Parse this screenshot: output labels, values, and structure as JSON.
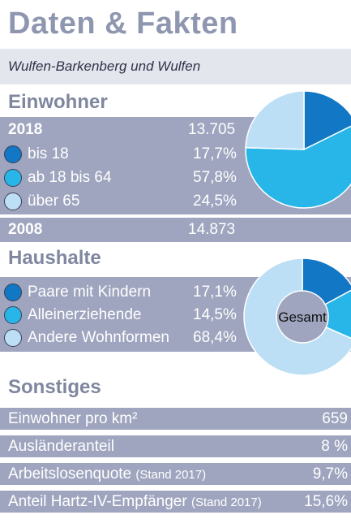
{
  "title": "Daten & Fakten",
  "subtitle": "Wulfen-Barkenberg und Wulfen",
  "colors": {
    "title": "#8f96b0",
    "band": "#9fa5bf",
    "dark_blue": "#1277c4",
    "cyan": "#28b6e8",
    "light_blue": "#bcdff5"
  },
  "einwohner": {
    "heading": "Einwohner",
    "year1": "2018",
    "year1_total": "13.705",
    "items": [
      {
        "label": "bis 18",
        "value": "17,7%",
        "color": "#1277c4"
      },
      {
        "label": "ab 18 bis 64",
        "value": "57,8%",
        "color": "#28b6e8"
      },
      {
        "label": "über 65",
        "value": "24,5%",
        "color": "#bcdff5"
      }
    ],
    "year2": "2008",
    "year2_total": "14.873"
  },
  "haushalte": {
    "heading": "Haushalte",
    "center_label": "Gesamt",
    "items": [
      {
        "label": "Paare mit Kindern",
        "value": "17,1%",
        "color": "#1277c4"
      },
      {
        "label": "Alleinerziehende",
        "value": "14,5%",
        "color": "#28b6e8"
      },
      {
        "label": "Andere Wohnformen",
        "value": "68,4%",
        "color": "#bcdff5"
      }
    ]
  },
  "sonstiges": {
    "heading": "Sonstiges",
    "rows": [
      {
        "label": "Einwohner pro km²",
        "note": "",
        "value": "659"
      },
      {
        "label": "Ausländeranteil",
        "note": "",
        "value": "8 %"
      },
      {
        "label": "Arbeitslosenquote",
        "note": "(Stand 2017)",
        "value": "9,7%"
      },
      {
        "label": "Anteil Hartz-IV-Empfänger",
        "note": "(Stand 2017)",
        "value": "15,6%"
      }
    ]
  },
  "chart_data": [
    {
      "type": "pie",
      "categories": [
        "bis 18",
        "ab 18 bis 64",
        "über 65"
      ],
      "values": [
        17.7,
        57.8,
        24.5
      ]
    },
    {
      "type": "pie",
      "categories": [
        "Paare mit Kindern",
        "Alleinerziehende",
        "Andere Wohnformen"
      ],
      "values": [
        17.1,
        14.5,
        68.4
      ]
    }
  ]
}
